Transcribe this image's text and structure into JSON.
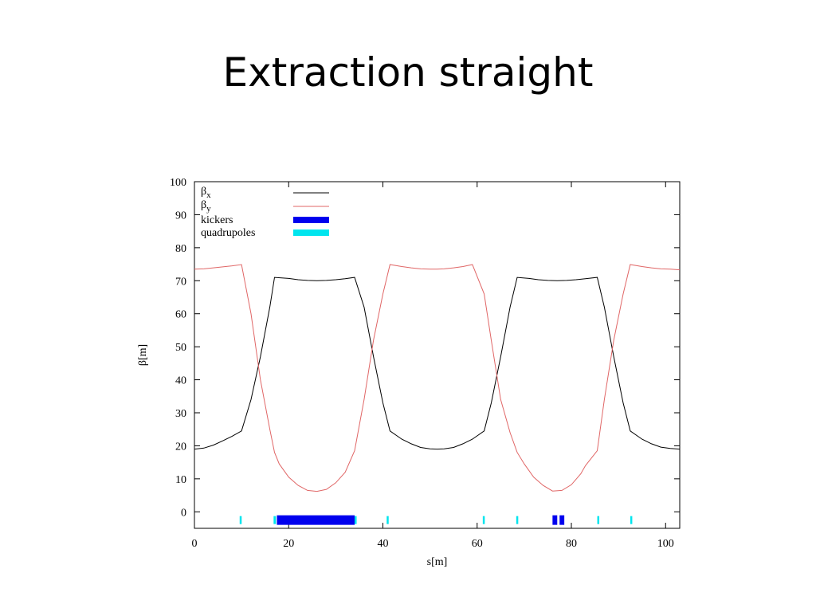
{
  "slide": {
    "title": "Extraction straight"
  },
  "chart_data": {
    "type": "line",
    "xlabel": "s[m]",
    "ylabel": "β[m]",
    "xlim": [
      0,
      103
    ],
    "ylim": [
      -5,
      100
    ],
    "xticks": [
      0,
      20,
      40,
      60,
      80,
      100
    ],
    "yticks": [
      0,
      10,
      20,
      30,
      40,
      50,
      60,
      70,
      80,
      90,
      100
    ],
    "legend_position": "top-left",
    "series": [
      {
        "name": "βx",
        "color": "#000000",
        "style": "line",
        "x": [
          0,
          2,
          4,
          6,
          8,
          10,
          12,
          14,
          16,
          17,
          20,
          22,
          24,
          26,
          28,
          30,
          32,
          34,
          36,
          38,
          40,
          41.5,
          44,
          46,
          48,
          50,
          51.5,
          53,
          55,
          57,
          59,
          61.5,
          63,
          65,
          67,
          68.5,
          71,
          73,
          75,
          77,
          79,
          81,
          83,
          85.5,
          87,
          89,
          91,
          92.5,
          95,
          97,
          99,
          101,
          103
        ],
        "y": [
          19,
          19.3,
          20.2,
          21.5,
          22.9,
          24.5,
          34,
          47,
          62,
          71,
          70.7,
          70.3,
          70.1,
          70.0,
          70.1,
          70.3,
          70.6,
          71,
          62,
          47,
          33,
          24.5,
          22.0,
          20.6,
          19.5,
          19.1,
          19.0,
          19.1,
          19.5,
          20.6,
          22.0,
          24.5,
          33,
          47,
          62,
          71,
          70.7,
          70.3,
          70.1,
          70.0,
          70.1,
          70.3,
          70.6,
          71,
          62,
          47,
          33,
          24.5,
          22.0,
          20.6,
          19.6,
          19.2,
          19
        ]
      },
      {
        "name": "βy",
        "color": "#e06666",
        "style": "line",
        "x": [
          0,
          2,
          4,
          6,
          8,
          10,
          12,
          14,
          16,
          17,
          18,
          20,
          22,
          24,
          26,
          28,
          30,
          32,
          34,
          36,
          38,
          40,
          41.5,
          44,
          46,
          48,
          50,
          51.5,
          53,
          55,
          57,
          59,
          61.5,
          63,
          65,
          67,
          68.5,
          70,
          72,
          74,
          76,
          78,
          80,
          82,
          83,
          85.5,
          87,
          89,
          91,
          92.5,
          95,
          97,
          99,
          101,
          103
        ],
        "y": [
          73.5,
          73.6,
          73.9,
          74.2,
          74.5,
          74.9,
          60,
          40,
          25,
          18,
          14.5,
          10.5,
          8.0,
          6.5,
          6.2,
          6.8,
          8.8,
          12,
          18.5,
          34,
          52,
          66,
          74.9,
          74.3,
          73.9,
          73.6,
          73.5,
          73.5,
          73.6,
          73.9,
          74.3,
          74.9,
          66,
          52,
          34,
          24,
          18,
          14.5,
          10.5,
          8.0,
          6.3,
          6.5,
          8.2,
          11.5,
          14,
          18.5,
          34,
          52,
          66,
          74.9,
          74.3,
          73.9,
          73.6,
          73.5,
          73.3
        ]
      },
      {
        "name": "kickers",
        "color": "#0000ee",
        "style": "element",
        "intervals": [
          [
            17.5,
            34
          ],
          [
            76,
            77
          ],
          [
            77.5,
            78.5
          ]
        ]
      },
      {
        "name": "quadrupoles",
        "color": "#00e5ee",
        "style": "element",
        "intervals": [
          [
            9.6,
            10.0
          ],
          [
            16.8,
            17.3
          ],
          [
            34,
            34.4
          ],
          [
            40.8,
            41.2
          ],
          [
            61.2,
            61.6
          ],
          [
            68.3,
            68.7
          ],
          [
            85.5,
            85.9
          ],
          [
            92.5,
            92.9
          ]
        ]
      }
    ]
  }
}
